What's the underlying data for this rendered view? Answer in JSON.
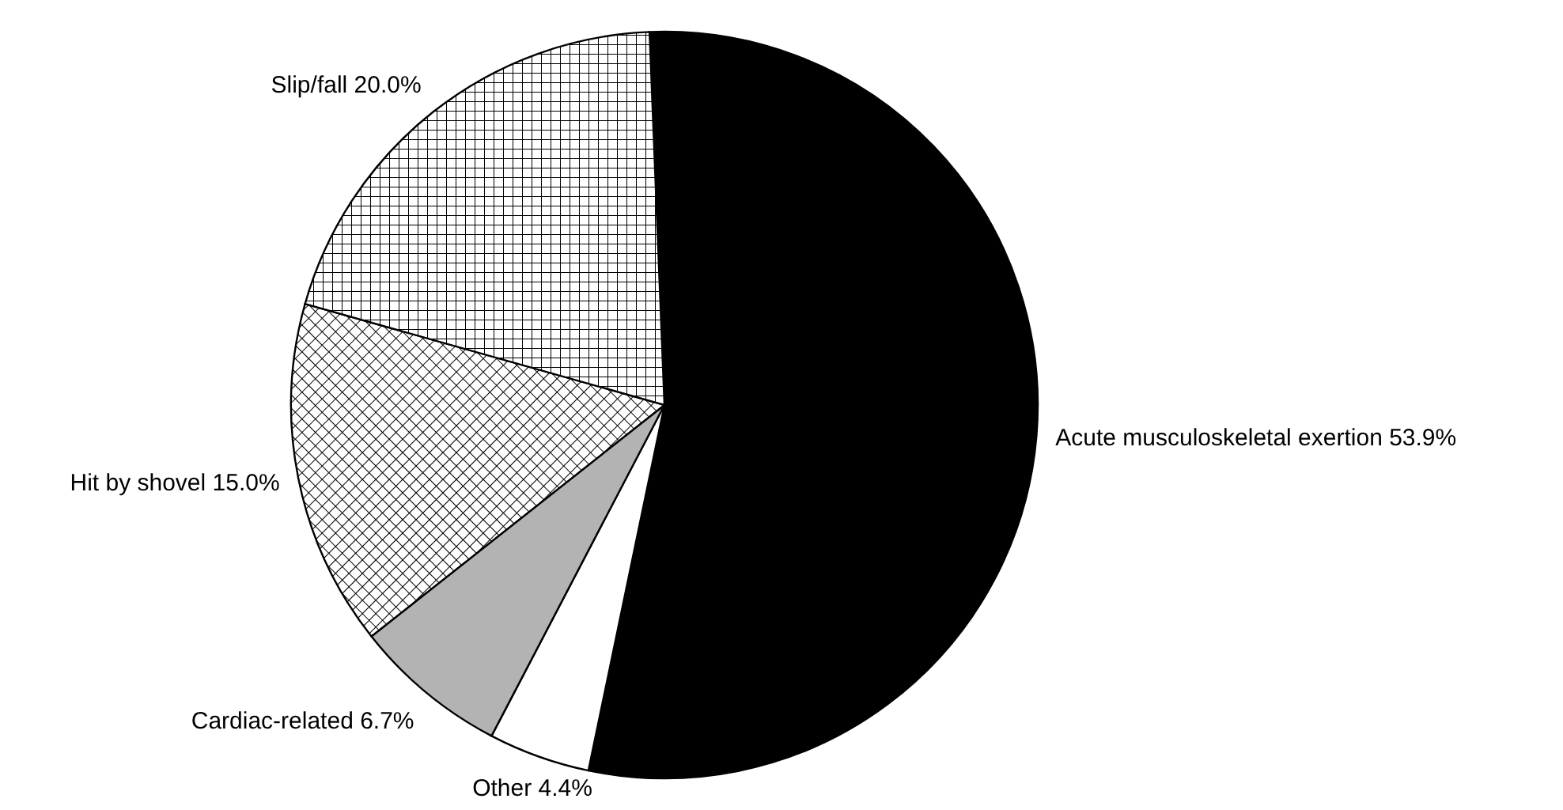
{
  "chart_data": {
    "type": "pie",
    "categories": [
      "Acute musculoskeletal exertion",
      "Other",
      "Cardiac-related",
      "Hit by shovel",
      "Slip/fall"
    ],
    "values": [
      53.9,
      4.4,
      6.7,
      15.0,
      20.0
    ],
    "value_labels": [
      "53.9%",
      "4.4%",
      "6.7%",
      "15.0%",
      "20.0%"
    ],
    "colors": [
      "#000000",
      "#ffffff",
      "#b3b3b3",
      "#000000",
      "#000000"
    ]
  }
}
